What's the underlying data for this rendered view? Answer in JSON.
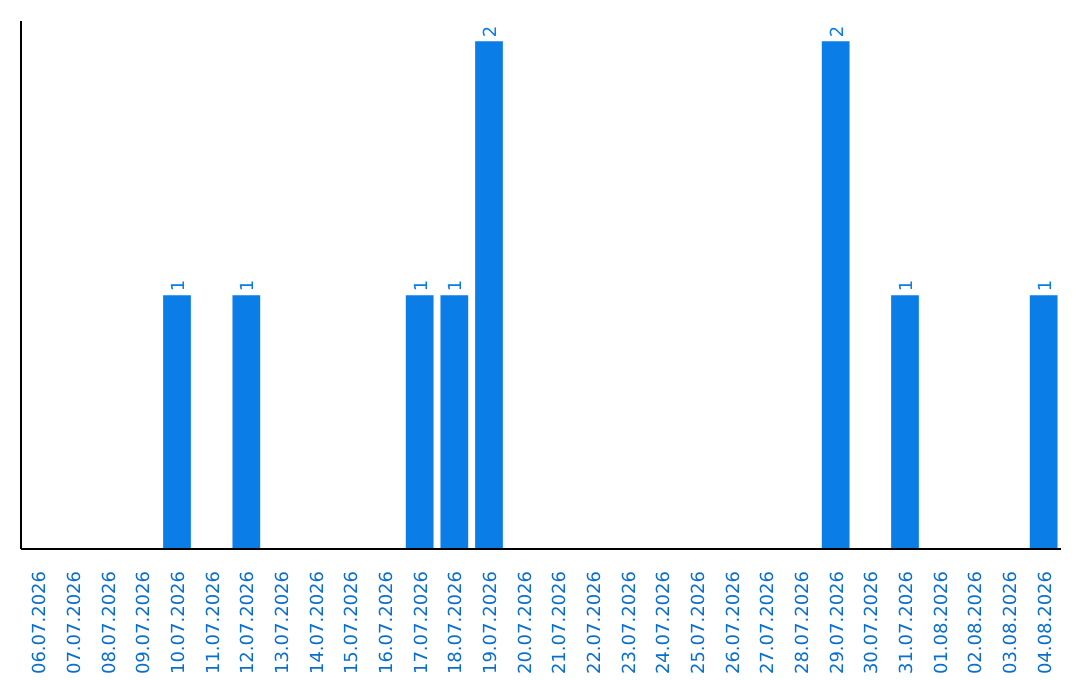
{
  "chart_data": {
    "type": "bar",
    "categories": [
      "06.07.2026",
      "07.07.2026",
      "08.07.2026",
      "09.07.2026",
      "10.07.2026",
      "11.07.2026",
      "12.07.2026",
      "13.07.2026",
      "14.07.2026",
      "15.07.2026",
      "16.07.2026",
      "17.07.2026",
      "18.07.2026",
      "19.07.2026",
      "20.07.2026",
      "21.07.2026",
      "22.07.2026",
      "23.07.2026",
      "24.07.2026",
      "25.07.2026",
      "26.07.2026",
      "27.07.2026",
      "28.07.2026",
      "29.07.2026",
      "30.07.2026",
      "31.07.2026",
      "01.08.2026",
      "02.08.2026",
      "03.08.2026",
      "04.08.2026"
    ],
    "values": [
      0,
      0,
      0,
      0,
      1,
      0,
      1,
      0,
      0,
      0,
      0,
      1,
      1,
      2,
      0,
      0,
      0,
      0,
      0,
      0,
      0,
      0,
      0,
      2,
      0,
      1,
      0,
      0,
      0,
      1
    ],
    "color": "#0a7de6",
    "ylim": [
      0,
      2.08
    ],
    "value_labels": [
      null,
      null,
      null,
      null,
      "1",
      null,
      "1",
      null,
      null,
      null,
      null,
      "1",
      "1",
      "2",
      null,
      null,
      null,
      null,
      null,
      null,
      null,
      null,
      null,
      "2",
      null,
      "1",
      null,
      null,
      null,
      "1"
    ],
    "grid": false,
    "tick_labels": "x"
  }
}
